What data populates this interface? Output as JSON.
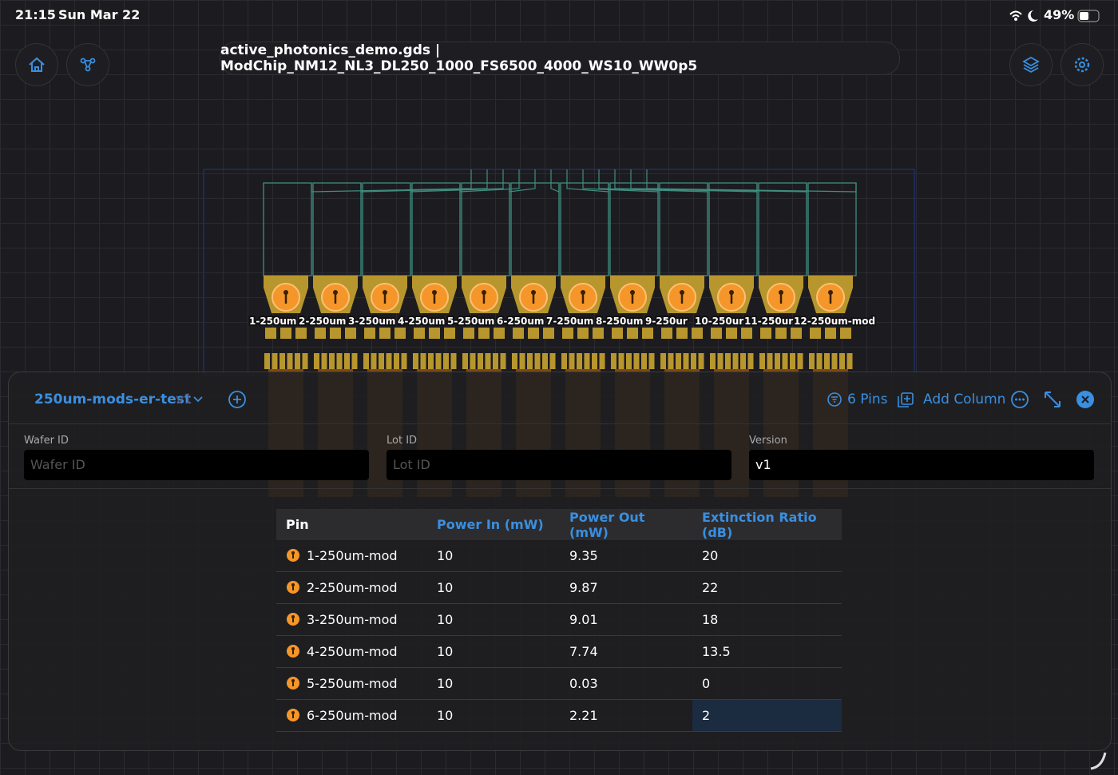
{
  "status_bar": {
    "time": "21:15",
    "date": "Sun Mar 22",
    "battery": "49%"
  },
  "toolbar": {
    "title": "active_photonics_demo.gds | ModChip_NM12_NL3_DL250_1000_FS6500_4000_WS10_WW0p5"
  },
  "chip": {
    "pin_labels": [
      "1-250um",
      "2-250um",
      "3-250um",
      "4-250um",
      "5-250um",
      "6-250um",
      "7-250um",
      "8-250um",
      "9-250ur",
      "10-250ur",
      "11-250ur",
      "12-250um-mod"
    ]
  },
  "panel": {
    "name": "250um-mods-er-test",
    "version_tag": "v1",
    "pins": "6 Pins",
    "add_column": "Add Column",
    "fields": [
      {
        "label": "Wafer ID",
        "placeholder": "Wafer ID"
      },
      {
        "label": "Lot ID",
        "placeholder": "Lot ID"
      },
      {
        "label": "Version",
        "value": "v1"
      }
    ]
  },
  "table": {
    "headers": [
      "Pin",
      "Power In (mW)",
      "Power Out (mW)",
      "Extinction Ratio (dB)"
    ],
    "rows": [
      [
        "1-250um-mod",
        "10",
        "9.35",
        "20"
      ],
      [
        "2-250um-mod",
        "10",
        "9.87",
        "22"
      ],
      [
        "3-250um-mod",
        "10",
        "9.01",
        "18"
      ],
      [
        "4-250um-mod",
        "10",
        "7.74",
        "13.5"
      ],
      [
        "5-250um-mod",
        "10",
        "0.03",
        "0"
      ],
      [
        "6-250um-mod",
        "10",
        "2.21",
        "2"
      ]
    ]
  }
}
